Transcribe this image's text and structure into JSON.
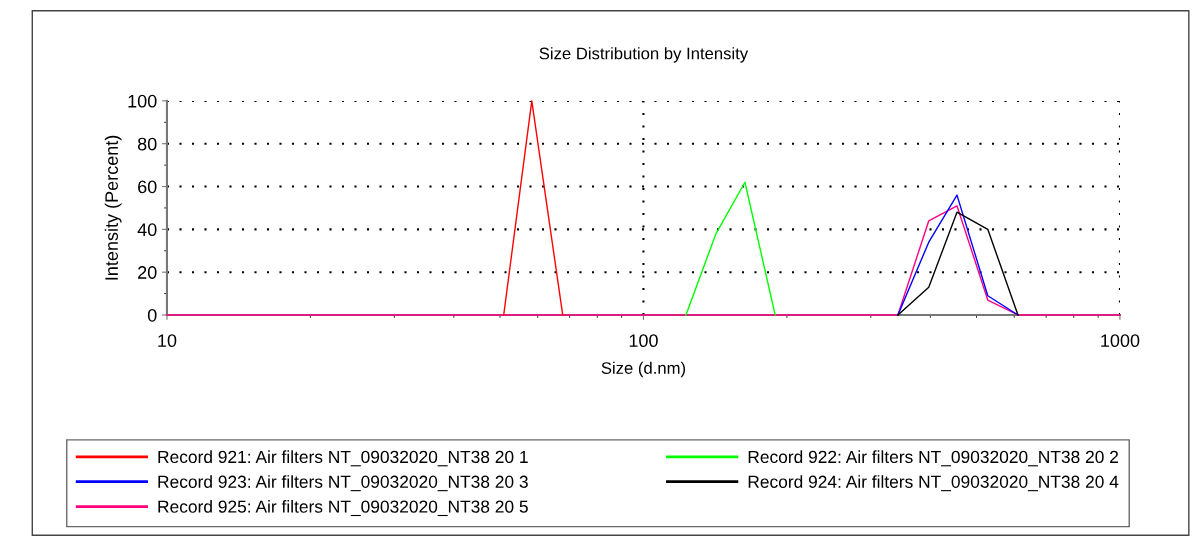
{
  "chart_data": {
    "type": "line",
    "title": "Size Distribution by Intensity",
    "xlabel": "Size (d.nm)",
    "ylabel": "Intensity (Percent)",
    "series": [
      {
        "name": "Record 921: Air filters NT_09032020_NT38 20 1",
        "color": "#ff0000",
        "x": [
          50.9,
          58.3,
          67.7
        ],
        "values": [
          0,
          100,
          0
        ]
      },
      {
        "name": "Record 923: Air filters NT_09032020_NT38 20 3",
        "color": "#0000ff",
        "x": [
          342,
          397,
          455,
          528,
          611
        ],
        "values": [
          0,
          34,
          56,
          9,
          0
        ]
      },
      {
        "name": "Record 925: Air filters NT_09032020_NT38 20 5",
        "color": "#ff0080",
        "x": [
          10,
          342,
          397,
          455,
          528,
          611,
          1000
        ],
        "values": [
          0,
          0,
          44,
          51,
          7,
          0,
          0
        ]
      },
      {
        "name": "Record 922: Air filters NT_09032020_NT38 20 2",
        "color": "#00ff00",
        "x": [
          122.8,
          142,
          163.3,
          189
        ],
        "values": [
          0,
          38,
          62,
          0
        ]
      },
      {
        "name": "Record 924: Air filters NT_09032020_NT38 20 4",
        "color": "#000000",
        "x": [
          342,
          397,
          455,
          528,
          611
        ],
        "values": [
          0,
          13,
          48,
          40,
          0
        ]
      }
    ],
    "log": "x",
    "xlim": [
      10,
      1000
    ],
    "xticks": [
      10,
      100,
      1000
    ],
    "ylim": [
      0,
      100
    ],
    "yticks": [
      0,
      20,
      40,
      60,
      80,
      100
    ],
    "grid": true,
    "legend": "bottom",
    "marker": "none",
    "line_style": "solid"
  }
}
